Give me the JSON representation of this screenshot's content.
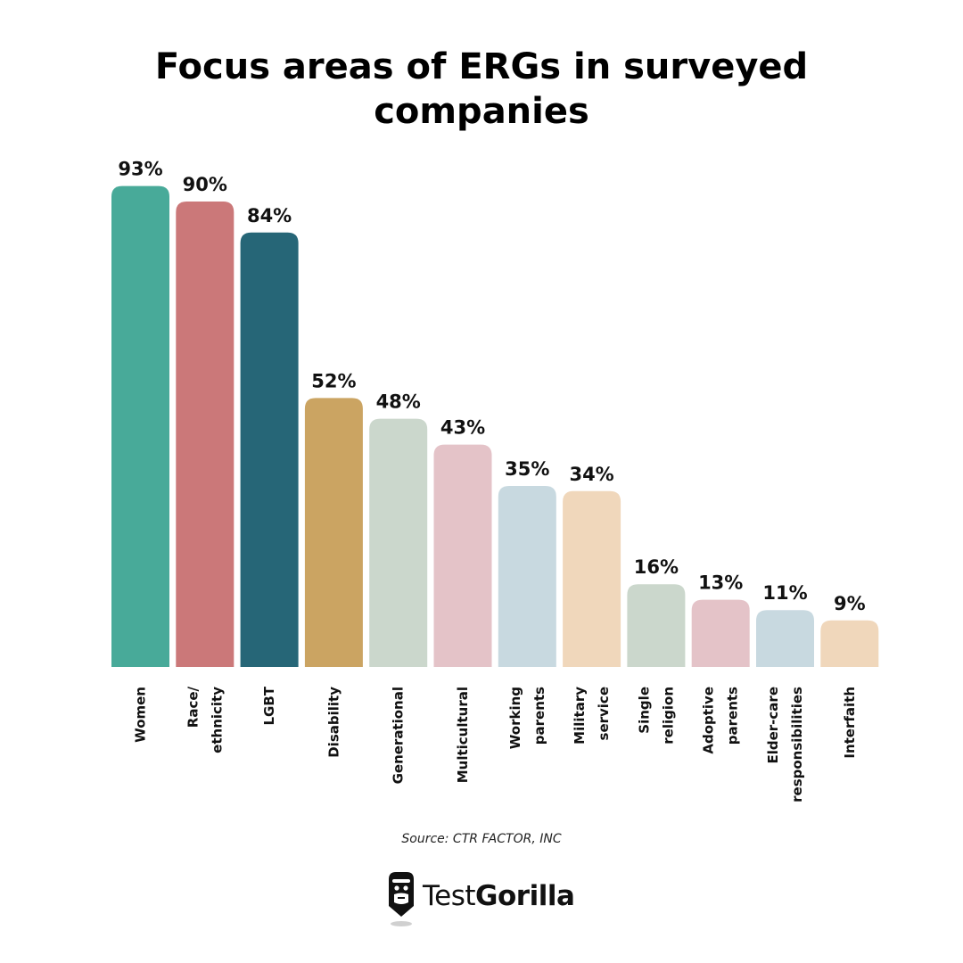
{
  "title": {
    "line1": "Focus areas of ERGs in surveyed",
    "line2": "companies"
  },
  "chart_data": {
    "type": "bar",
    "title": "Focus areas of ERGs in surveyed companies",
    "xlabel": "",
    "ylabel": "",
    "ylim": [
      0,
      100
    ],
    "grid": false,
    "legend": "none",
    "unit": "%",
    "categories": [
      [
        "Women"
      ],
      [
        "Race/",
        "ethnicity"
      ],
      [
        "LGBT"
      ],
      [
        "Disability"
      ],
      [
        "Generational"
      ],
      [
        "Multicultural"
      ],
      [
        "Working",
        "parents"
      ],
      [
        "Military",
        "service"
      ],
      [
        "Single",
        "religion"
      ],
      [
        "Adoptive",
        "parents"
      ],
      [
        "Elder-care",
        "responsibilities"
      ],
      [
        "Interfaith"
      ]
    ],
    "values": [
      93,
      90,
      84,
      52,
      48,
      43,
      35,
      34,
      16,
      13,
      11,
      9
    ],
    "value_labels": [
      "93%",
      "90%",
      "84%",
      "52%",
      "48%",
      "43%",
      "35%",
      "34%",
      "16%",
      "13%",
      "11%",
      "9%"
    ],
    "colors": [
      "#48aa99",
      "#cb7879",
      "#266677",
      "#cba462",
      "#cbd7cc",
      "#e4c3c8",
      "#c8d9e0",
      "#f0d7bb",
      "#cbd7cc",
      "#e4c3c8",
      "#c8d9e0",
      "#f0d7bb"
    ]
  },
  "source": "Source: CTR FACTOR, INC",
  "brand": {
    "light": "Test",
    "bold": "Gorilla"
  }
}
